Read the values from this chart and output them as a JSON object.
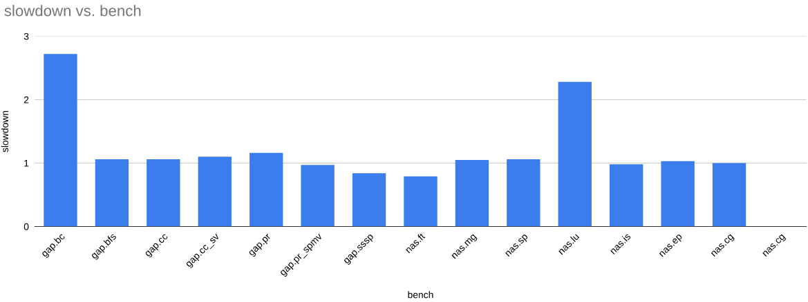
{
  "chart_data": {
    "type": "bar",
    "title": "slowdown vs. bench",
    "xlabel": "bench",
    "ylabel": "slowdown",
    "categories": [
      "gap.bc",
      "gap.bfs",
      "gap.cc",
      "gap.cc_sv",
      "gap.pr",
      "gap.pr_spmv",
      "gap.sssp",
      "nas.ft",
      "nas.mg",
      "nas.sp",
      "nas.lu",
      "nas.is",
      "nas.ep",
      "nas.cg",
      "nas.cg"
    ],
    "values": [
      2.72,
      1.06,
      1.06,
      1.1,
      1.16,
      0.97,
      0.84,
      0.79,
      1.05,
      1.06,
      2.28,
      0.98,
      1.03,
      1.0,
      null
    ],
    "color": "#3b7ded",
    "ylim": [
      0,
      3
    ],
    "yticks": [
      0,
      1,
      2,
      3
    ],
    "grid": "y",
    "legend": false
  }
}
